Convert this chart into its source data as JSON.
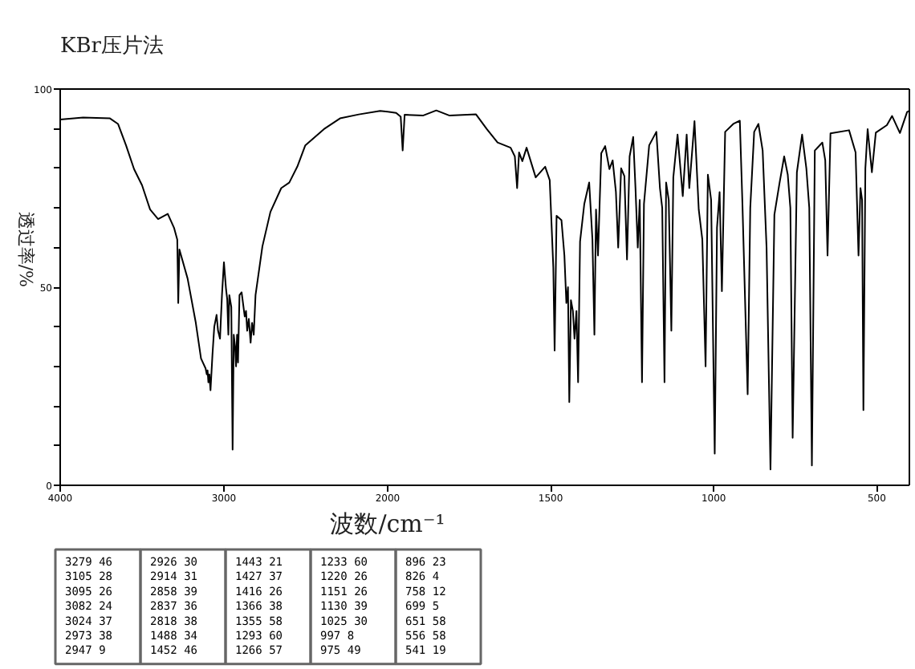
{
  "chart_data": [
    {
      "type": "line",
      "title": "KBr压片法",
      "ylabel": "透过率/%",
      "x": [
        4000,
        3860,
        3696,
        3647,
        3598,
        3549,
        3500,
        3451,
        3402,
        3343,
        3304,
        3285,
        3279,
        3272,
        3222,
        3173,
        3140,
        3112,
        3105,
        3100,
        3095,
        3089,
        3082,
        3070,
        3059,
        3045,
        3036,
        3024,
        3012,
        3000,
        2987,
        2980,
        2973,
        2967,
        2955,
        2947,
        2940,
        2932,
        2926,
        2920,
        2914,
        2905,
        2892,
        2873,
        2865,
        2858,
        2848,
        2837,
        2828,
        2818,
        2807,
        2765,
        2716,
        2650,
        2601,
        2552,
        2503,
        2389,
        2291,
        2176,
        2046,
        2000
      ],
      "series": [
        {
          "color": "#000000",
          "values": [
            92.3,
            92.8,
            92.6,
            91.2,
            85.8,
            79.8,
            75.7,
            69.6,
            67.2,
            68.5,
            64.9,
            62,
            46,
            59.5,
            52.2,
            41.3,
            32,
            29.5,
            28,
            29,
            26,
            28,
            24,
            33,
            40,
            43,
            39,
            37,
            48,
            56.3,
            49.4,
            47,
            38,
            48,
            45,
            9,
            38,
            35,
            30,
            38,
            31,
            48,
            48.7,
            42.6,
            44,
            39,
            42,
            36,
            41,
            38,
            48,
            60.3,
            69,
            75,
            76.4,
            80.4,
            85.8,
            89.9,
            92.6,
            93.6,
            94.5,
            94.3
          ]
        }
      ],
      "xlim": [
        4000,
        2000
      ],
      "ylim": [
        0,
        100
      ],
      "xticks": [
        4000,
        3000,
        2000
      ],
      "yticks": [
        0,
        {
          "value": 10,
          "label": null
        },
        {
          "value": 20,
          "label": null
        },
        {
          "value": 30,
          "label": null
        },
        {
          "value": 40,
          "label": null
        },
        50,
        {
          "value": 60,
          "label": null
        },
        {
          "value": 70,
          "label": null
        },
        {
          "value": 80,
          "label": null
        },
        {
          "value": 90,
          "label": null
        },
        100
      ],
      "line_style": "solid"
    },
    {
      "type": "line",
      "xlabel": "波数/cm⁻¹",
      "x": [
        2000,
        1974,
        1960,
        1954,
        1948,
        1892,
        1851,
        1810,
        1729,
        1696,
        1663,
        1623,
        1610,
        1603,
        1597,
        1587,
        1574,
        1546,
        1517,
        1503,
        1492,
        1488,
        1482,
        1467,
        1458,
        1452,
        1447,
        1443,
        1438,
        1432,
        1427,
        1421,
        1416,
        1410,
        1397,
        1382,
        1372,
        1366,
        1361,
        1355,
        1345,
        1333,
        1320,
        1310,
        1300,
        1293,
        1284,
        1274,
        1266,
        1258,
        1247,
        1240,
        1233,
        1227,
        1220,
        1214,
        1198,
        1176,
        1165,
        1158,
        1151,
        1146,
        1138,
        1130,
        1124,
        1111,
        1095,
        1083,
        1075,
        1059,
        1046,
        1035,
        1025,
        1018,
        1008,
        997,
        990,
        982,
        975,
        965,
        940,
        920,
        912,
        896,
        888,
        876,
        863,
        850,
        838,
        826,
        814,
        798,
        784,
        773,
        765,
        758,
        745,
        729,
        716,
        707,
        699,
        690,
        667,
        658,
        651,
        642,
        585,
        565,
        556,
        550,
        545,
        541,
        535,
        528,
        515,
        503,
        469,
        453,
        429,
        407,
        400
      ],
      "series": [
        {
          "color": "#000000",
          "values": [
            94.3,
            94,
            93,
            84.5,
            93.5,
            93.3,
            94.6,
            93.3,
            93.6,
            89.9,
            86.5,
            85.2,
            83,
            75,
            84,
            81.8,
            85.2,
            77.7,
            80.4,
            77,
            55,
            34,
            68,
            66.9,
            58,
            46,
            50,
            21,
            46.7,
            44,
            37,
            44,
            26,
            61.5,
            71,
            76.4,
            62,
            38,
            69.6,
            58,
            83.8,
            85.6,
            79.8,
            82,
            74,
            60,
            80,
            78,
            57,
            83,
            87.9,
            75,
            60,
            72,
            26,
            71,
            85.8,
            89.2,
            75,
            70,
            26,
            76.4,
            72,
            39,
            77.7,
            88.5,
            73,
            88.5,
            75,
            91.9,
            69.6,
            62,
            30,
            78.4,
            72,
            8,
            65,
            74,
            49,
            89.2,
            91.2,
            92,
            71,
            23,
            70,
            89.2,
            91.2,
            84.5,
            60,
            4,
            68.3,
            76.4,
            83,
            78.4,
            70,
            12,
            79,
            88.5,
            80,
            70,
            5,
            84.5,
            86.5,
            82,
            58,
            88.8,
            89.6,
            84,
            58,
            75,
            72,
            19,
            80,
            89.9,
            79,
            89,
            90.9,
            93.2,
            88.9,
            94.2,
            94.5
          ]
        }
      ],
      "xlim": [
        2000,
        400
      ],
      "ylim": [
        0,
        100
      ],
      "xticks": [
        1500,
        1000,
        500
      ],
      "tick_labels": "x",
      "line_style": "solid"
    },
    {
      "type": "other",
      "annotations": [
        "3279 46",
        "3105 28",
        "3095 26",
        "3082 24",
        "3024 37",
        "2973 38",
        "2947 9",
        "2926 30",
        "2914 31",
        "2858 39",
        "2837 36",
        "2818 38",
        "1488 34",
        "1452 46",
        "1443 21",
        "1427 37",
        "1416 26",
        "1366 38",
        "1355 58",
        "1293 60",
        "1266 57",
        "1233 60",
        "1220 26",
        "1151 26",
        "1130 39",
        "1025 30",
        "997 8",
        "975 49",
        "896 23",
        "826 4",
        "758 12",
        "699 5",
        "651 58",
        "556 58",
        "541 19"
      ]
    }
  ]
}
